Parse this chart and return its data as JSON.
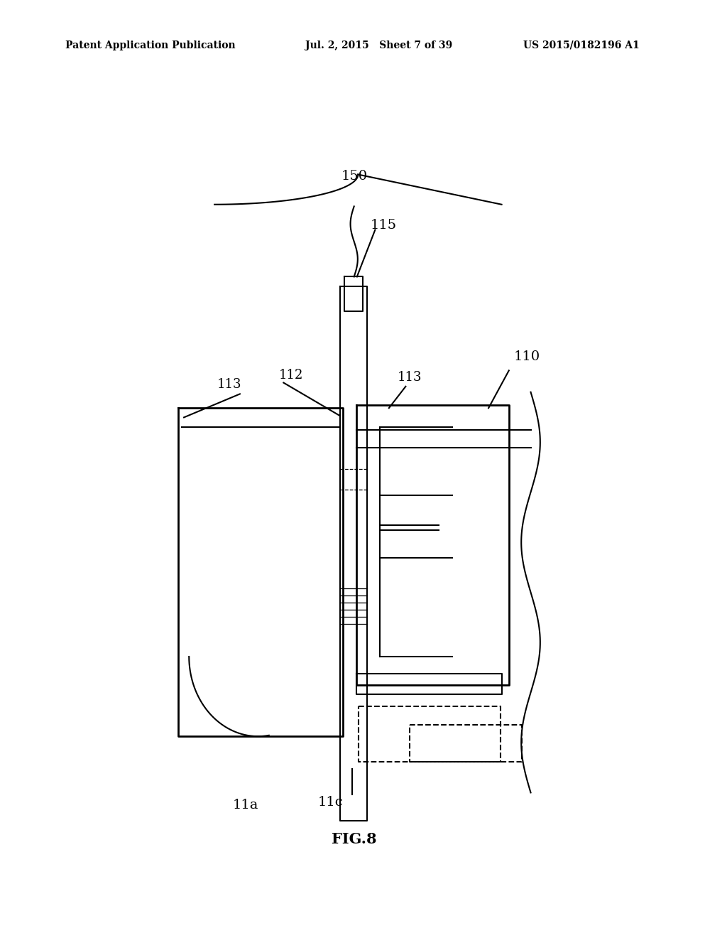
{
  "background_color": "#ffffff",
  "header_left": "Patent Application Publication",
  "header_center": "Jul. 2, 2015   Sheet 7 of 39",
  "header_right": "US 2015/0182196 A1",
  "figure_label": "FIG.8"
}
